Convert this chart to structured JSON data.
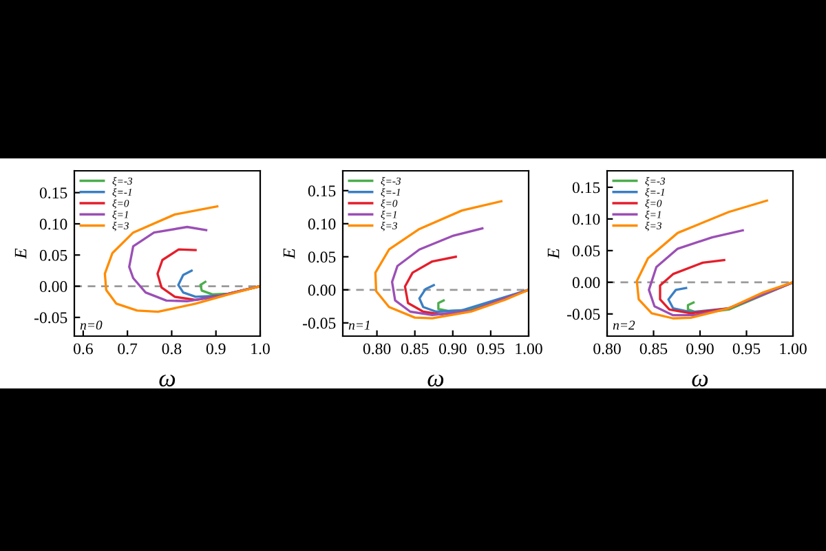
{
  "chart_data": [
    {
      "type": "line",
      "xlabel": "ω",
      "ylabel": "E",
      "xlim": [
        0.58,
        1.0
      ],
      "ylim": [
        -0.08,
        0.185
      ],
      "xticks": [
        0.6,
        0.7,
        0.8,
        0.9,
        {
          "value": 1.0,
          "label": "1.0"
        }
      ],
      "yticks": [
        {
          "value": -0.05,
          "label": "-0.05"
        },
        {
          "value": 0,
          "label": "0.00"
        },
        {
          "value": 0.05,
          "label": "0.05"
        },
        {
          "value": 0.1,
          "label": "0.10"
        },
        {
          "value": 0.15,
          "label": "0.15"
        }
      ],
      "legend": "top left",
      "annotations": [
        "n=0"
      ],
      "ref_lines": [
        {
          "axis": "y",
          "value": 0,
          "color": "#999999",
          "line_style": "dashed"
        }
      ],
      "series": [
        {
          "name": "ξ=-3",
          "color": "#4cae4c",
          "x": [
            0.876,
            0.865,
            0.868,
            0.892,
            0.929,
            1.0
          ],
          "values": [
            0.007,
            0.002,
            -0.007,
            -0.013,
            -0.012,
            0
          ]
        },
        {
          "name": "ξ=-1",
          "color": "#3b7fc4",
          "x": [
            0.845,
            0.826,
            0.815,
            0.826,
            0.854,
            0.911,
            1.0
          ],
          "values": [
            0.025,
            0.018,
            0.002,
            -0.01,
            -0.017,
            -0.015,
            0
          ]
        },
        {
          "name": "ξ=0",
          "color": "#e41e2b",
          "x": [
            0.854,
            0.816,
            0.779,
            0.768,
            0.777,
            0.807,
            0.854,
            0.911,
            1.0
          ],
          "values": [
            0.058,
            0.059,
            0.042,
            0.02,
            -0.002,
            -0.017,
            -0.022,
            -0.015,
            0
          ]
        },
        {
          "name": "ξ=1",
          "color": "#9b4fb5",
          "x": [
            0.878,
            0.835,
            0.76,
            0.713,
            0.704,
            0.713,
            0.741,
            0.788,
            0.835,
            0.901,
            1.0
          ],
          "values": [
            0.09,
            0.095,
            0.086,
            0.064,
            0.031,
            0.013,
            -0.01,
            -0.023,
            -0.024,
            -0.017,
            0
          ]
        },
        {
          "name": "ξ=3",
          "color": "#ff8c00",
          "x": [
            0.903,
            0.807,
            0.713,
            0.666,
            0.649,
            0.652,
            0.675,
            0.722,
            0.769,
            0.854,
            0.929,
            1.0
          ],
          "values": [
            0.128,
            0.115,
            0.086,
            0.053,
            0.02,
            -0.006,
            -0.028,
            -0.039,
            -0.041,
            -0.028,
            -0.013,
            0
          ]
        }
      ]
    },
    {
      "type": "line",
      "xlabel": "ω",
      "ylabel": "E",
      "xlim": [
        0.755,
        1.0
      ],
      "ylim": [
        -0.07,
        0.18
      ],
      "xticks": [
        {
          "value": 0.8,
          "label": "0.80"
        },
        {
          "value": 0.85,
          "label": "0.85"
        },
        {
          "value": 0.9,
          "label": "0.90"
        },
        {
          "value": 0.95,
          "label": "0.95"
        },
        {
          "value": 1.0,
          "label": "1.00"
        }
      ],
      "yticks": [
        {
          "value": -0.05,
          "label": "-0.05"
        },
        {
          "value": 0,
          "label": "0.00"
        },
        {
          "value": 0.05,
          "label": "0.05"
        },
        {
          "value": 0.1,
          "label": "0.10"
        },
        {
          "value": 0.15,
          "label": "0.15"
        }
      ],
      "legend": "top left",
      "annotations": [
        "n=1"
      ],
      "ref_lines": [
        {
          "axis": "y",
          "value": 0,
          "color": "#999999",
          "line_style": "dashed"
        }
      ],
      "series": [
        {
          "name": "ξ=-3",
          "color": "#4cae4c",
          "x": [
            0.888,
            0.881,
            0.881,
            0.895,
            0.924,
            1.0
          ],
          "values": [
            -0.016,
            -0.02,
            -0.029,
            -0.032,
            -0.03,
            0
          ]
        },
        {
          "name": "ξ=-1",
          "color": "#3b7fc4",
          "x": [
            0.875,
            0.864,
            0.856,
            0.861,
            0.878,
            0.912,
            1.0
          ],
          "values": [
            0.007,
            0.001,
            -0.013,
            -0.026,
            -0.033,
            -0.031,
            0
          ]
        },
        {
          "name": "ξ=0",
          "color": "#e41e2b",
          "x": [
            0.904,
            0.873,
            0.847,
            0.837,
            0.841,
            0.861,
            0.884,
            0.924,
            1.0
          ],
          "values": [
            0.05,
            0.043,
            0.026,
            0.005,
            -0.02,
            -0.033,
            -0.037,
            -0.032,
            0
          ]
        },
        {
          "name": "ξ=1",
          "color": "#9b4fb5",
          "x": [
            0.939,
            0.901,
            0.856,
            0.827,
            0.82,
            0.824,
            0.844,
            0.873,
            0.924,
            1.0
          ],
          "values": [
            0.093,
            0.082,
            0.061,
            0.036,
            0.012,
            -0.016,
            -0.033,
            -0.038,
            -0.032,
            0
          ]
        },
        {
          "name": "ξ=3",
          "color": "#ff8c00",
          "x": [
            0.964,
            0.912,
            0.856,
            0.816,
            0.798,
            0.799,
            0.816,
            0.85,
            0.873,
            0.924,
            0.969,
            1.0
          ],
          "values": [
            0.134,
            0.12,
            0.092,
            0.061,
            0.026,
            -0.002,
            -0.026,
            -0.042,
            -0.043,
            -0.033,
            -0.015,
            0
          ]
        }
      ]
    },
    {
      "type": "line",
      "xlabel": "ω",
      "ylabel": "E",
      "xlim": [
        0.8,
        1.0
      ],
      "ylim": [
        -0.085,
        0.176
      ],
      "xticks": [
        {
          "value": 0.8,
          "label": "0.80"
        },
        {
          "value": 0.85,
          "label": "0.85"
        },
        {
          "value": 0.9,
          "label": "0.90"
        },
        {
          "value": 0.95,
          "label": "0.95"
        },
        {
          "value": 1.0,
          "label": "1.00"
        }
      ],
      "yticks": [
        {
          "value": -0.05,
          "label": "-0.05"
        },
        {
          "value": 0,
          "label": "0.00"
        },
        {
          "value": 0.05,
          "label": "0.05"
        },
        {
          "value": 0.1,
          "label": "0.10"
        },
        {
          "value": 0.15,
          "label": "0.15"
        }
      ],
      "legend": "top left",
      "annotations": [
        "n=2"
      ],
      "ref_lines": [
        {
          "axis": "y",
          "value": 0,
          "color": "#999999",
          "line_style": "dashed"
        }
      ],
      "series": [
        {
          "name": "ξ=-3",
          "color": "#4cae4c",
          "x": [
            0.893,
            0.887,
            0.887,
            0.899,
            0.931,
            1.0
          ],
          "values": [
            -0.032,
            -0.036,
            -0.043,
            -0.049,
            -0.043,
            0
          ]
        },
        {
          "name": "ξ=-1",
          "color": "#3b7fc4",
          "x": [
            0.885,
            0.874,
            0.866,
            0.871,
            0.89,
            0.931,
            1.0
          ],
          "values": [
            -0.009,
            -0.012,
            -0.027,
            -0.041,
            -0.047,
            -0.041,
            0
          ]
        },
        {
          "name": "ξ=0",
          "color": "#e41e2b",
          "x": [
            0.926,
            0.903,
            0.871,
            0.857,
            0.857,
            0.867,
            0.89,
            0.931,
            1.0
          ],
          "values": [
            0.035,
            0.031,
            0.013,
            -0.005,
            -0.027,
            -0.043,
            -0.049,
            -0.041,
            0
          ]
        },
        {
          "name": "ξ=1",
          "color": "#9b4fb5",
          "x": [
            0.946,
            0.913,
            0.876,
            0.853,
            0.845,
            0.851,
            0.871,
            0.894,
            0.931,
            1.0
          ],
          "values": [
            0.082,
            0.071,
            0.053,
            0.024,
            -0.012,
            -0.038,
            -0.052,
            -0.052,
            -0.041,
            0
          ]
        },
        {
          "name": "ξ=3",
          "color": "#ff8c00",
          "x": [
            0.972,
            0.931,
            0.876,
            0.844,
            0.832,
            0.834,
            0.848,
            0.871,
            0.89,
            0.931,
            0.968,
            1.0
          ],
          "values": [
            0.129,
            0.111,
            0.078,
            0.038,
            0.002,
            -0.027,
            -0.049,
            -0.057,
            -0.056,
            -0.041,
            -0.016,
            0
          ]
        }
      ]
    }
  ]
}
